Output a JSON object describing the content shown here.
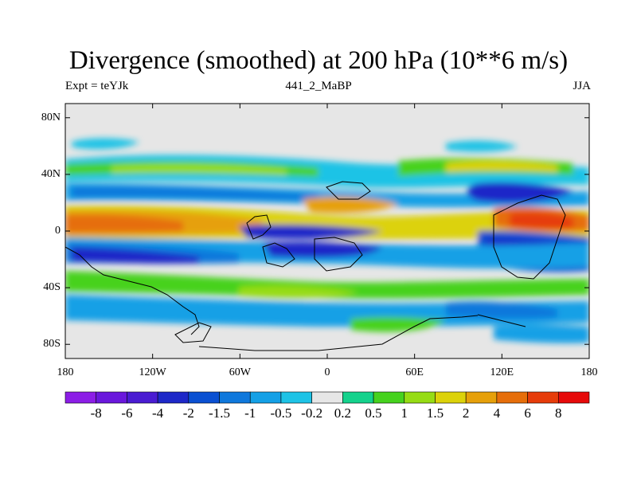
{
  "title": "Divergence (smoothed) at 200 hPa (10**6 m/s)",
  "subtitle_left": "Expt = teYJk",
  "subtitle_center": "441_2_MaBP",
  "subtitle_right": "JJA",
  "lat_ticks": [
    {
      "label": "80N",
      "value": 80
    },
    {
      "label": "40N",
      "value": 40
    },
    {
      "label": "0",
      "value": 0
    },
    {
      "label": "40S",
      "value": -40
    },
    {
      "label": "80S",
      "value": -80
    }
  ],
  "lon_ticks": [
    {
      "label": "180",
      "value": -180
    },
    {
      "label": "120W",
      "value": -120
    },
    {
      "label": "60W",
      "value": -60
    },
    {
      "label": "0",
      "value": 0
    },
    {
      "label": "60E",
      "value": 60
    },
    {
      "label": "120E",
      "value": 120
    },
    {
      "label": "180",
      "value": 180
    }
  ],
  "colorbar": {
    "colors": [
      "#8c1ee6",
      "#6a18dc",
      "#4a1cd2",
      "#1e28c8",
      "#0a50d2",
      "#0f78dc",
      "#14a0e6",
      "#1ec3e6",
      "#e6e6e6",
      "#14d28c",
      "#46d21e",
      "#96dc14",
      "#dcd20a",
      "#e6a00a",
      "#e66e0a",
      "#e63c0a",
      "#e60a0a"
    ],
    "labels": [
      "-8",
      "-6",
      "-4",
      "-2",
      "-1.5",
      "-1",
      "-0.5",
      "-0.2",
      "0.2",
      "0.5",
      "1",
      "1.5",
      "2",
      "4",
      "6",
      "8"
    ]
  }
}
